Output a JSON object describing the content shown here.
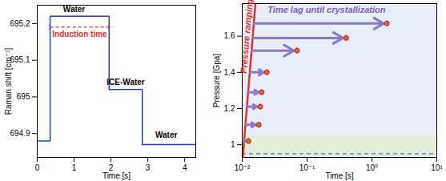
{
  "chart_data": [
    {
      "type": "line",
      "x_label": "Time [s]",
      "y_label": "Raman shift [cm⁻¹]",
      "x": [
        0,
        0.35,
        0.35,
        1.95,
        1.95,
        2.85,
        2.85,
        4.3
      ],
      "values": [
        694.88,
        694.88,
        695.22,
        695.22,
        695.02,
        695.02,
        694.87,
        694.87
      ],
      "color": "#1f3fbf",
      "xlim": [
        0,
        4.3
      ],
      "xticks": [
        0,
        1,
        2,
        3,
        4
      ],
      "ylim": [
        694.835,
        695.25
      ],
      "yticks": [
        694.9,
        695,
        695.1,
        695.2
      ],
      "grid": false,
      "annotations": [
        {
          "text": "Water",
          "x": 1.0,
          "y": 695.238,
          "color": "#000000"
        },
        {
          "text": "Induction time",
          "x": 1.15,
          "y": 695.17,
          "color": "#e03030",
          "arrow_x": [
            0.35,
            1.95
          ],
          "arrow_y": 695.19
        },
        {
          "text": "ICE-Water",
          "x": 2.4,
          "y": 695.04,
          "color": "#000000"
        },
        {
          "text": "Water",
          "x": 3.5,
          "y": 694.895,
          "color": "#000000"
        }
      ]
    },
    {
      "type": "scatter",
      "x_label": "Time [s]",
      "y_label": "Pressure [Gpa]",
      "log": "x",
      "x": [
        1.7,
        0.4,
        0.07,
        0.024,
        0.02,
        0.019,
        0.018,
        0.0125
      ],
      "values": [
        1.67,
        1.59,
        1.52,
        1.4,
        1.29,
        1.21,
        1.11,
        1.02
      ],
      "error": [
        0.015,
        0.015,
        0.015,
        0.015,
        0.015,
        0.015,
        0.015,
        0.015
      ],
      "lag_start": [
        0.0151,
        0.0145,
        0.014,
        0.0132,
        0.0124,
        0.0119,
        0.0113,
        0.0106
      ],
      "color": "#e8603c",
      "xlim": [
        0.01,
        10
      ],
      "xticks": [
        {
          "value": 0.01,
          "label": "10⁻²"
        },
        {
          "value": 0.1,
          "label": "10⁻¹"
        },
        {
          "value": 1,
          "label": "10⁰"
        },
        {
          "value": 10,
          "label": "10¹"
        }
      ],
      "ylim": [
        0.93,
        1.78
      ],
      "yticks": [
        1,
        1.2,
        1.4,
        1.6
      ],
      "grid": false,
      "ramp": {
        "x": [
          0.0102,
          0.016
        ],
        "y": [
          0.93,
          1.78
        ]
      },
      "band": [
        0.93,
        1.05
      ],
      "reference_line": 0.95,
      "annotations": [
        {
          "text": "Pressure ramping",
          "x": 0.0118,
          "y": 1.6,
          "color": "#e03030"
        },
        {
          "text": "Time lag until crystallization",
          "x": 0.2,
          "y": 1.745,
          "color": "#7a5cb8"
        }
      ]
    }
  ]
}
